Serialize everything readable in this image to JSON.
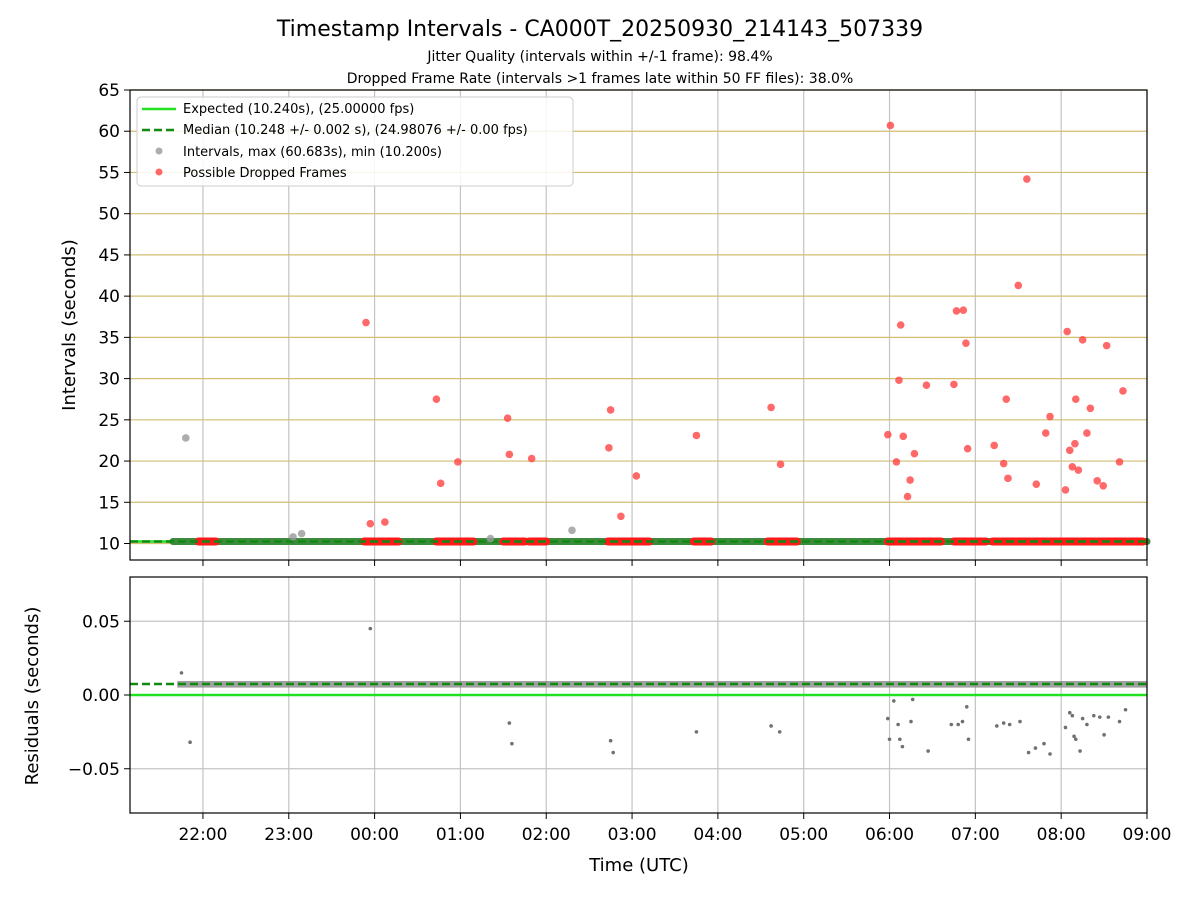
{
  "chart_data": [
    {
      "type": "scatter",
      "title": "Timestamp Intervals - CA000T_20250930_214143_507339",
      "subtitle_1": "Jitter Quality (intervals within +/-1 frame): 98.4%",
      "subtitle_2": "Dropped Frame Rate (intervals >1 frames late within 50 FF files): 38.0%",
      "xlabel": "",
      "ylabel": "Intervals (seconds)",
      "x_unit": "hours since 00:00 UTC",
      "xlim": [
        -2.85,
        9.0
      ],
      "ylim": [
        8,
        65
      ],
      "y_ticks": [
        10,
        15,
        20,
        25,
        30,
        35,
        40,
        45,
        50,
        55,
        60,
        65
      ],
      "y_tick_labels": [
        "10",
        "15",
        "20",
        "25",
        "30",
        "35",
        "40",
        "45",
        "50",
        "55",
        "60",
        "65"
      ],
      "grid": "horizontal dark-yellow lines, vertical grey lines",
      "legend_position": "top-left",
      "legend": [
        {
          "label": "Expected (10.240s), (25.00000 fps)",
          "style": "line",
          "color": "#22e022"
        },
        {
          "label": "Median (10.248 +/- 0.002 s), (24.98076 +/- 0.00 fps)",
          "style": "dashed",
          "color": "#118a11"
        },
        {
          "label": "Intervals, max (60.683s), min (10.200s)",
          "style": "marker",
          "color": "#999999"
        },
        {
          "label": "Possible Dropped Frames",
          "style": "marker",
          "color": "#ff4444"
        }
      ],
      "expected_line": 10.24,
      "median_line": 10.248,
      "baseline_band": {
        "x_range": [
          -2.35,
          9.0
        ],
        "y": 10.24,
        "color": "#3c8a3c"
      },
      "series": [
        {
          "name": "Intervals",
          "color": "#999999",
          "points": [
            [
              -2.2,
              22.8
            ],
            [
              -0.95,
              10.8
            ],
            [
              -0.85,
              11.2
            ],
            [
              1.35,
              10.6
            ],
            [
              2.3,
              11.6
            ]
          ]
        },
        {
          "name": "Possible Dropped Frames",
          "color": "#ff4444",
          "points": [
            [
              -0.1,
              36.8
            ],
            [
              -0.05,
              12.4
            ],
            [
              0.12,
              12.6
            ],
            [
              0.72,
              27.5
            ],
            [
              0.77,
              17.3
            ],
            [
              0.97,
              19.9
            ],
            [
              1.55,
              25.2
            ],
            [
              1.57,
              20.8
            ],
            [
              1.83,
              20.3
            ],
            [
              2.73,
              21.6
            ],
            [
              2.75,
              26.2
            ],
            [
              2.87,
              13.3
            ],
            [
              3.05,
              18.2
            ],
            [
              3.75,
              23.1
            ],
            [
              4.62,
              26.5
            ],
            [
              4.73,
              19.6
            ],
            [
              5.98,
              23.2
            ],
            [
              6.01,
              60.7
            ],
            [
              6.08,
              19.9
            ],
            [
              6.11,
              29.8
            ],
            [
              6.13,
              36.5
            ],
            [
              6.16,
              23.0
            ],
            [
              6.21,
              15.7
            ],
            [
              6.24,
              17.7
            ],
            [
              6.29,
              20.9
            ],
            [
              6.43,
              29.2
            ],
            [
              6.75,
              29.3
            ],
            [
              6.78,
              38.2
            ],
            [
              6.86,
              38.3
            ],
            [
              6.89,
              34.3
            ],
            [
              6.91,
              21.5
            ],
            [
              7.22,
              21.9
            ],
            [
              7.33,
              19.7
            ],
            [
              7.36,
              27.5
            ],
            [
              7.38,
              17.9
            ],
            [
              7.5,
              41.3
            ],
            [
              7.6,
              54.2
            ],
            [
              7.71,
              17.2
            ],
            [
              7.82,
              23.4
            ],
            [
              7.87,
              25.4
            ],
            [
              8.05,
              16.5
            ],
            [
              8.07,
              35.7
            ],
            [
              8.1,
              21.3
            ],
            [
              8.13,
              19.3
            ],
            [
              8.16,
              22.1
            ],
            [
              8.17,
              27.5
            ],
            [
              8.2,
              18.9
            ],
            [
              8.25,
              34.7
            ],
            [
              8.3,
              23.4
            ],
            [
              8.34,
              26.4
            ],
            [
              8.42,
              17.6
            ],
            [
              8.49,
              17.0
            ],
            [
              8.53,
              34.0
            ],
            [
              8.68,
              19.9
            ],
            [
              8.72,
              28.5
            ]
          ]
        }
      ],
      "dropped_baseline_segments": [
        [
          -2.05,
          -1.85
        ],
        [
          -0.12,
          0.28
        ],
        [
          0.72,
          1.15
        ],
        [
          1.5,
          1.75
        ],
        [
          1.8,
          2.0
        ],
        [
          2.72,
          3.2
        ],
        [
          3.72,
          3.92
        ],
        [
          4.58,
          4.92
        ],
        [
          5.98,
          6.6
        ],
        [
          6.75,
          7.12
        ],
        [
          7.2,
          8.95
        ]
      ]
    },
    {
      "type": "scatter",
      "title": "",
      "xlabel": "Time (UTC)",
      "ylabel": "Residuals (seconds)",
      "xlim": [
        -2.85,
        9.0
      ],
      "ylim": [
        -0.08,
        0.08
      ],
      "x_ticks": [
        -2,
        -1,
        0,
        1,
        2,
        3,
        4,
        5,
        6,
        7,
        8,
        9
      ],
      "x_tick_labels": [
        "22:00",
        "23:00",
        "00:00",
        "01:00",
        "02:00",
        "03:00",
        "04:00",
        "05:00",
        "06:00",
        "07:00",
        "08:00",
        "09:00"
      ],
      "y_ticks": [
        -0.05,
        0.0,
        0.05
      ],
      "y_tick_labels": [
        "−0.05",
        "0.00",
        "0.05"
      ],
      "grid": "grey horizontal and vertical",
      "expected_line": 0.0,
      "median_line": 0.0075,
      "residual_band": {
        "x_range": [
          -2.3,
          9.0
        ],
        "y_range": [
          0.005,
          0.0095
        ],
        "color": "#808080"
      },
      "series": [
        {
          "name": "Residuals",
          "color": "#707070",
          "points": [
            [
              -2.25,
              0.015
            ],
            [
              -2.15,
              -0.032
            ],
            [
              -0.05,
              0.045
            ],
            [
              1.57,
              -0.019
            ],
            [
              1.6,
              -0.033
            ],
            [
              2.75,
              -0.031
            ],
            [
              2.78,
              -0.039
            ],
            [
              3.75,
              -0.025
            ],
            [
              4.62,
              -0.021
            ],
            [
              4.72,
              -0.025
            ],
            [
              5.98,
              -0.016
            ],
            [
              6.0,
              -0.03
            ],
            [
              6.05,
              -0.004
            ],
            [
              6.1,
              -0.02
            ],
            [
              6.12,
              -0.03
            ],
            [
              6.15,
              -0.035
            ],
            [
              6.25,
              -0.018
            ],
            [
              6.27,
              -0.003
            ],
            [
              6.45,
              -0.038
            ],
            [
              6.72,
              -0.02
            ],
            [
              6.8,
              -0.02
            ],
            [
              6.85,
              -0.018
            ],
            [
              6.9,
              -0.008
            ],
            [
              6.92,
              -0.03
            ],
            [
              7.25,
              -0.021
            ],
            [
              7.33,
              -0.019
            ],
            [
              7.4,
              -0.02
            ],
            [
              7.52,
              -0.018
            ],
            [
              7.62,
              -0.039
            ],
            [
              7.7,
              -0.036
            ],
            [
              7.8,
              -0.033
            ],
            [
              7.87,
              -0.04
            ],
            [
              8.05,
              -0.022
            ],
            [
              8.1,
              -0.012
            ],
            [
              8.13,
              -0.014
            ],
            [
              8.15,
              -0.028
            ],
            [
              8.17,
              -0.03
            ],
            [
              8.22,
              -0.038
            ],
            [
              8.25,
              -0.016
            ],
            [
              8.3,
              -0.02
            ],
            [
              8.38,
              -0.014
            ],
            [
              8.45,
              -0.015
            ],
            [
              8.5,
              -0.027
            ],
            [
              8.55,
              -0.015
            ],
            [
              8.68,
              -0.018
            ],
            [
              8.75,
              -0.01
            ]
          ]
        }
      ]
    }
  ]
}
